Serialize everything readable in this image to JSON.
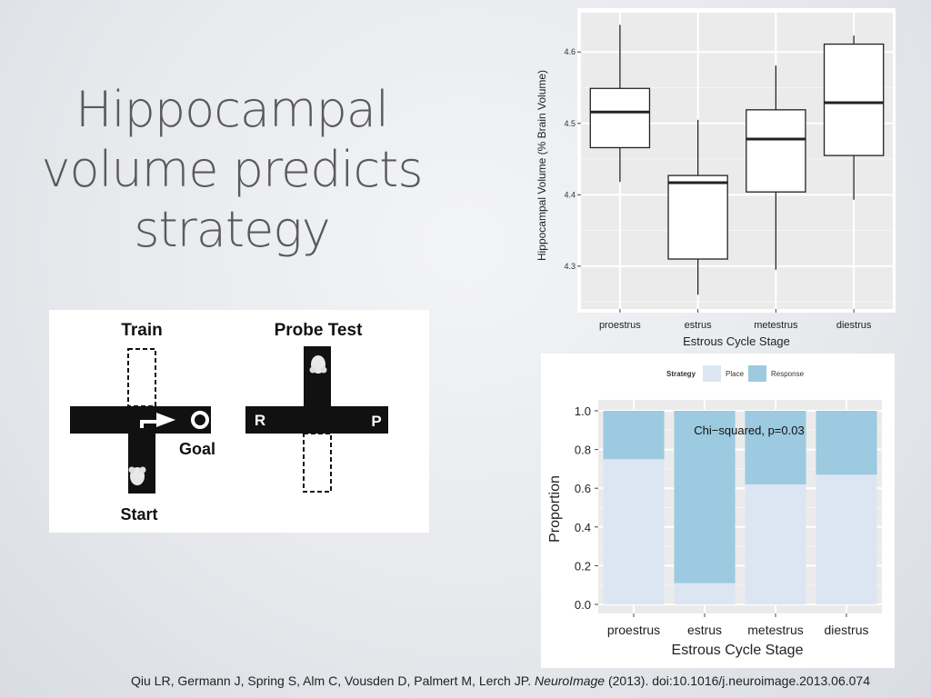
{
  "slide": {
    "title_lines": [
      "Hippocampal",
      "volume predicts",
      "strategy"
    ]
  },
  "maze": {
    "train_label": "Train",
    "probe_label": "Probe Test",
    "goal_label": "Goal",
    "start_label": "Start",
    "r_label": "R",
    "p_label": "P"
  },
  "citation": {
    "authors": "Qiu LR, Germann J, Spring S, Alm C, Vousden D, Palmert M, Lerch JP. ",
    "journal": "NeuroImage",
    "rest": " (2013). doi:10.1016/j.neuroimage.2013.06.074"
  },
  "colors": {
    "place": "#dce6f2",
    "response": "#9ccae0",
    "panel_bg": "#ebebeb",
    "grid": "#ffffff"
  },
  "chart_data": [
    {
      "type": "box",
      "title": "",
      "xlabel": "Estrous Cycle Stage",
      "ylabel": "Hippocampal Volume (% Brain Volume)",
      "categories": [
        "proestrus",
        "estrus",
        "metestrus",
        "diestrus"
      ],
      "ylim": [
        4.24,
        4.655
      ],
      "yticks": [
        4.3,
        4.4,
        4.5,
        4.6
      ],
      "yticks_labels": [
        "4.3",
        "4.4",
        "4.5",
        "4.6"
      ],
      "boxes": [
        {
          "min": 4.418,
          "q1": 4.466,
          "median": 4.516,
          "q3": 4.549,
          "max": 4.638
        },
        {
          "min": 4.26,
          "q1": 4.31,
          "median": 4.417,
          "q3": 4.427,
          "max": 4.505
        },
        {
          "min": 4.295,
          "q1": 4.404,
          "median": 4.478,
          "q3": 4.519,
          "max": 4.581
        },
        {
          "min": 4.393,
          "q1": 4.455,
          "median": 4.529,
          "q3": 4.611,
          "max": 4.623
        }
      ],
      "grid": true
    },
    {
      "type": "bar",
      "stacked": true,
      "title": "",
      "annotation": "Chi−squared, p=0.03",
      "legend_title": "Strategy",
      "legend_position": "top",
      "xlabel": "Estrous Cycle Stage",
      "ylabel": "Proportion",
      "categories": [
        "proestrus",
        "estrus",
        "metestrus",
        "diestrus"
      ],
      "ylim": [
        0,
        1.0
      ],
      "yticks": [
        0.0,
        0.2,
        0.4,
        0.6,
        0.8,
        1.0
      ],
      "yticks_labels": [
        "0.0",
        "0.2",
        "0.4",
        "0.6",
        "0.8",
        "1.0"
      ],
      "series": [
        {
          "name": "Place",
          "values": [
            0.75,
            0.11,
            0.62,
            0.67
          ]
        },
        {
          "name": "Response",
          "values": [
            0.25,
            0.89,
            0.38,
            0.33
          ]
        }
      ],
      "grid": true
    }
  ]
}
